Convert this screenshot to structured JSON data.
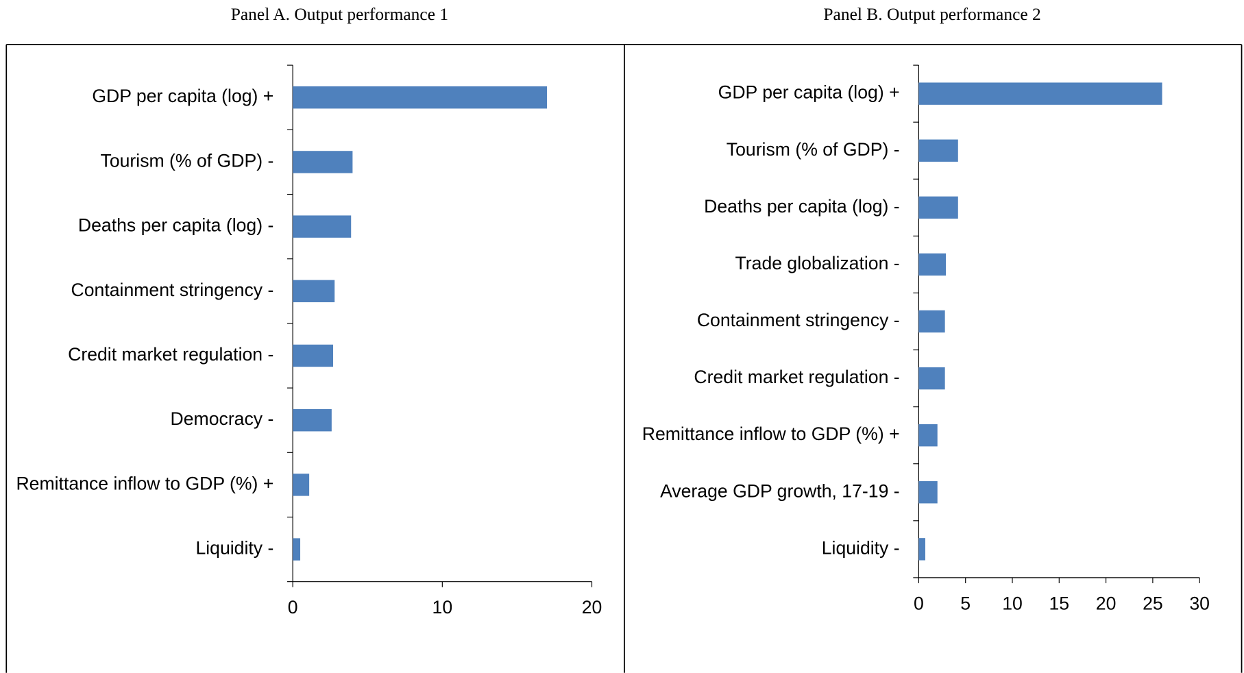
{
  "chart_data": [
    {
      "type": "bar",
      "orientation": "horizontal",
      "title": "Panel A. Output performance 1",
      "categories": [
        "GDP per capita (log) +",
        "Tourism (% of GDP) -",
        "Deaths per capita (log) -",
        "Containment stringency -",
        "Credit market regulation -",
        "Democracy -",
        "Remittance inflow to GDP (%) +",
        "Liquidity -"
      ],
      "values": [
        17.0,
        4.0,
        3.9,
        2.8,
        2.7,
        2.6,
        1.1,
        0.5
      ],
      "color": "#4f81bd",
      "xlim": [
        0,
        20
      ],
      "xticks": [
        0,
        10,
        20
      ]
    },
    {
      "type": "bar",
      "orientation": "horizontal",
      "title": "Panel B. Output performance 2",
      "categories": [
        "GDP per capita (log) +",
        "Tourism (% of GDP) -",
        "Deaths per capita (log) -",
        "Trade globalization -",
        "Containment stringency -",
        "Credit market regulation -",
        "Remittance inflow to GDP (%) +",
        "Average GDP growth, 17-19 -",
        "Liquidity -"
      ],
      "values": [
        26.0,
        4.2,
        4.2,
        2.9,
        2.8,
        2.8,
        2.0,
        2.0,
        0.7
      ],
      "color": "#4f81bd",
      "xlim": [
        0,
        30
      ],
      "xticks": [
        0,
        5,
        10,
        15,
        20,
        25,
        30
      ]
    }
  ]
}
